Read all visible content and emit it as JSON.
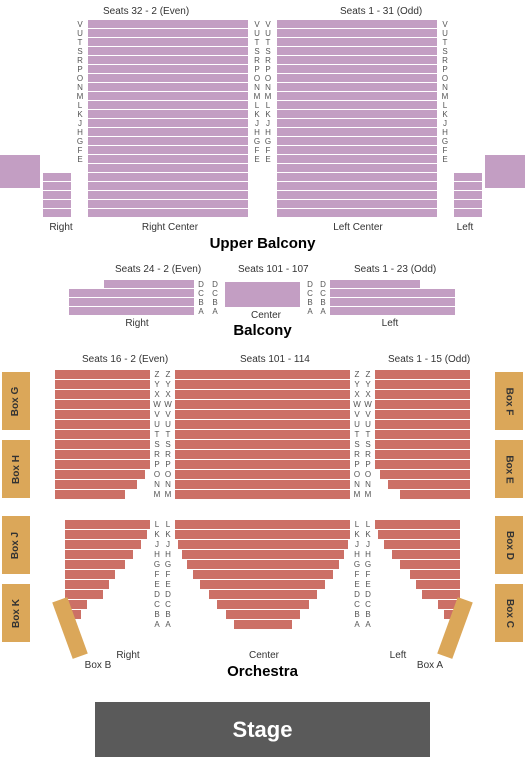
{
  "colors": {
    "balcony_row": "#c39ec3",
    "orchestra_row": "#cc7066",
    "box": "#dba759",
    "stage_bg": "#5a5a5a",
    "stage_text": "#ffffff",
    "text": "#333333",
    "label": "#555555"
  },
  "upper_balcony": {
    "title": "Upper Balcony",
    "seat_range_right": "Seats 32 - 2 (Even)",
    "seat_range_left": "Seats 1 - 31 (Odd)",
    "rows": [
      "V",
      "U",
      "T",
      "S",
      "R",
      "P",
      "O",
      "N",
      "M",
      "L",
      "K",
      "J",
      "H",
      "G",
      "F",
      "E"
    ],
    "right_center_label": "Right Center",
    "left_center_label": "Left Center",
    "right_label": "Right",
    "left_label": "Left"
  },
  "balcony": {
    "title": "Balcony",
    "seat_range_right": "Seats 24 - 2 (Even)",
    "seat_range_left": "Seats 1 - 23 (Odd)",
    "seat_range_center": "Seats 101 - 107",
    "rows": [
      "D",
      "C",
      "B",
      "A"
    ],
    "center_label": "Center",
    "right_label": "Right",
    "left_label": "Left"
  },
  "orchestra": {
    "title": "Orchestra",
    "seat_range_right": "Seats 16 - 2 (Even)",
    "seat_range_left": "Seats 1 - 15 (Odd)",
    "seat_range_center": "Seats 101 - 114",
    "rows_back": [
      "Z",
      "Y",
      "X",
      "W",
      "V",
      "U",
      "T",
      "S",
      "R",
      "P",
      "O",
      "N",
      "M"
    ],
    "rows_front": [
      "L",
      "K",
      "J",
      "H",
      "G",
      "F",
      "E",
      "D",
      "C",
      "B",
      "A"
    ],
    "center_label": "Center",
    "right_label": "Right",
    "left_label": "Left"
  },
  "boxes": {
    "left": [
      "Box G",
      "Box H",
      "Box J",
      "Box K"
    ],
    "right": [
      "Box F",
      "Box E",
      "Box D",
      "Box C"
    ],
    "box_a": "Box A",
    "box_b": "Box B"
  },
  "stage": "Stage"
}
